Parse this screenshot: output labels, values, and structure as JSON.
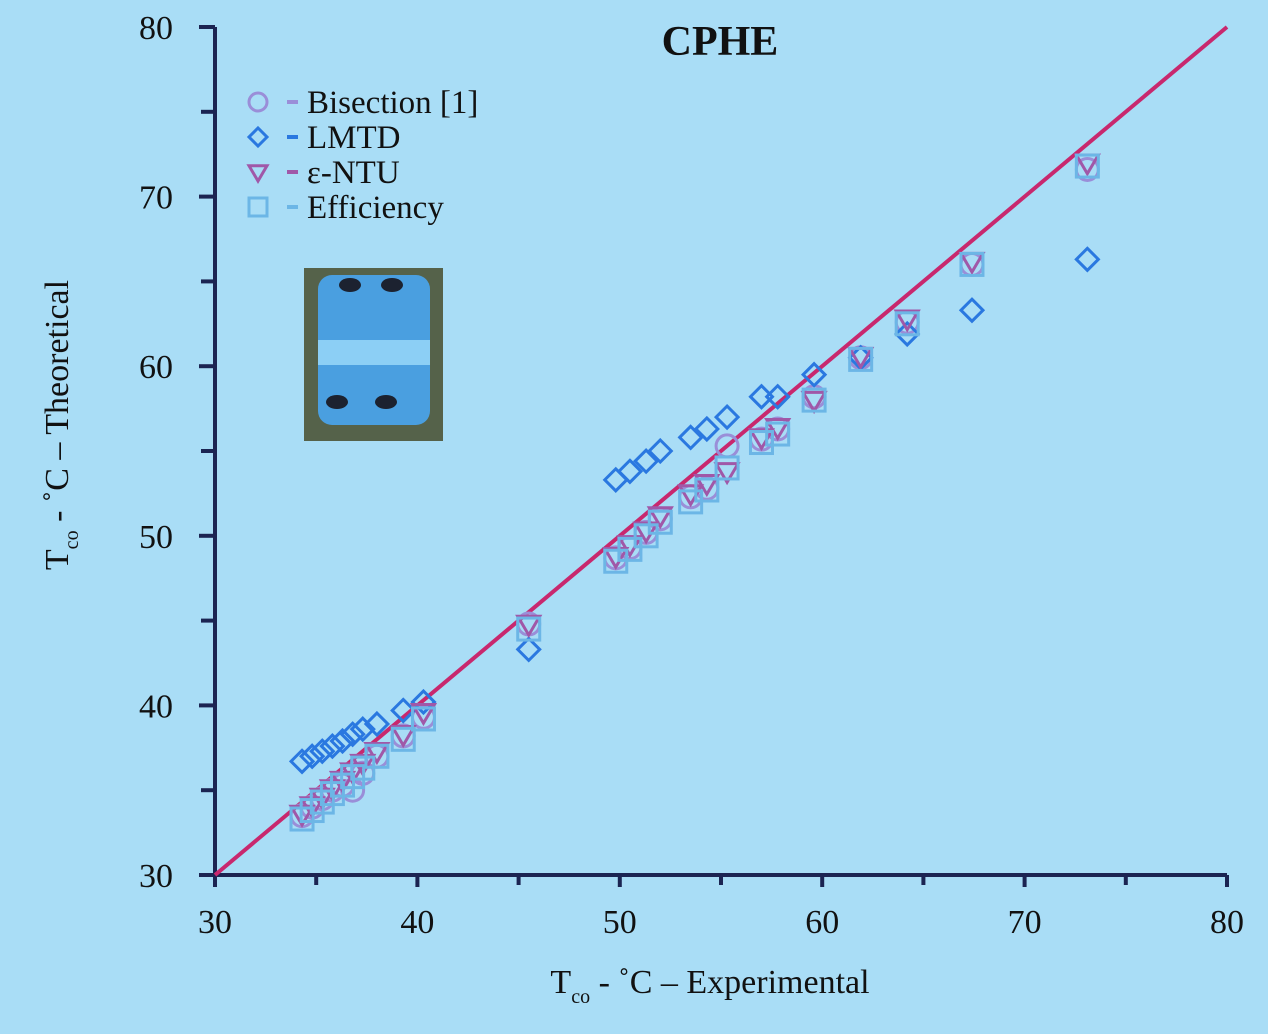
{
  "chart_data": {
    "type": "scatter",
    "title": "CPHE",
    "x_label": {
      "symbol": "T",
      "subscript": "co",
      "text": " - ˚C – Experimental"
    },
    "y_label": {
      "symbol": "T",
      "subscript": "co",
      "text": " - ˚C – Theoretical"
    },
    "xlim": [
      30,
      80
    ],
    "ylim": [
      30,
      80
    ],
    "xticks": [
      30,
      40,
      50,
      60,
      70,
      80
    ],
    "yticks": [
      30,
      40,
      50,
      60,
      70,
      80
    ],
    "xticks_minor": [
      35,
      45,
      55,
      65,
      75
    ],
    "yticks_minor": [
      35,
      45,
      55,
      65,
      75
    ],
    "reference_line_color": "#c8286e",
    "x": [
      34.3,
      34.8,
      35.3,
      35.8,
      36.3,
      36.8,
      37.3,
      38.0,
      39.3,
      40.3,
      45.5,
      49.8,
      50.5,
      51.3,
      52.0,
      53.5,
      54.3,
      55.3,
      57.0,
      57.8,
      59.6,
      61.9,
      64.2,
      67.4,
      73.1
    ],
    "series": [
      {
        "name": "Bisection [1]",
        "marker": "circle",
        "color": "#9a8ed8",
        "values": [
          33.5,
          34.0,
          34.5,
          35.0,
          35.3,
          35.0,
          36.0,
          37.0,
          38.2,
          39.3,
          44.8,
          48.7,
          49.3,
          50.2,
          51.0,
          52.3,
          52.8,
          55.3,
          55.7,
          56.3,
          58.2,
          60.5,
          62.6,
          66.0,
          71.6
        ]
      },
      {
        "name": "LMTD",
        "marker": "diamond",
        "color": "#2a78e0",
        "values": [
          36.7,
          37.0,
          37.3,
          37.6,
          37.9,
          38.3,
          38.6,
          38.9,
          39.7,
          40.2,
          43.3,
          53.3,
          53.8,
          54.4,
          55.0,
          55.8,
          56.3,
          57.0,
          58.2,
          58.2,
          59.5,
          60.5,
          61.9,
          63.3,
          66.3
        ]
      },
      {
        "name": "ε-NTU",
        "marker": "triangle",
        "color": "#a058a8",
        "values": [
          33.6,
          34.1,
          34.6,
          35.1,
          35.6,
          36.1,
          36.6,
          37.3,
          38.3,
          39.6,
          44.8,
          48.8,
          49.5,
          50.3,
          51.2,
          52.5,
          53.1,
          53.8,
          55.8,
          56.4,
          58.0,
          60.6,
          62.8,
          66.2,
          72.0
        ]
      },
      {
        "name": "Efficiency",
        "marker": "square",
        "color": "#6cb6e6",
        "values": [
          33.3,
          33.8,
          34.3,
          34.8,
          35.3,
          35.8,
          36.3,
          37.0,
          38.0,
          39.2,
          44.5,
          48.5,
          49.2,
          50.0,
          50.8,
          52.0,
          52.7,
          54.0,
          55.5,
          56.0,
          58.0,
          60.4,
          62.5,
          66.0,
          71.8
        ]
      }
    ]
  }
}
